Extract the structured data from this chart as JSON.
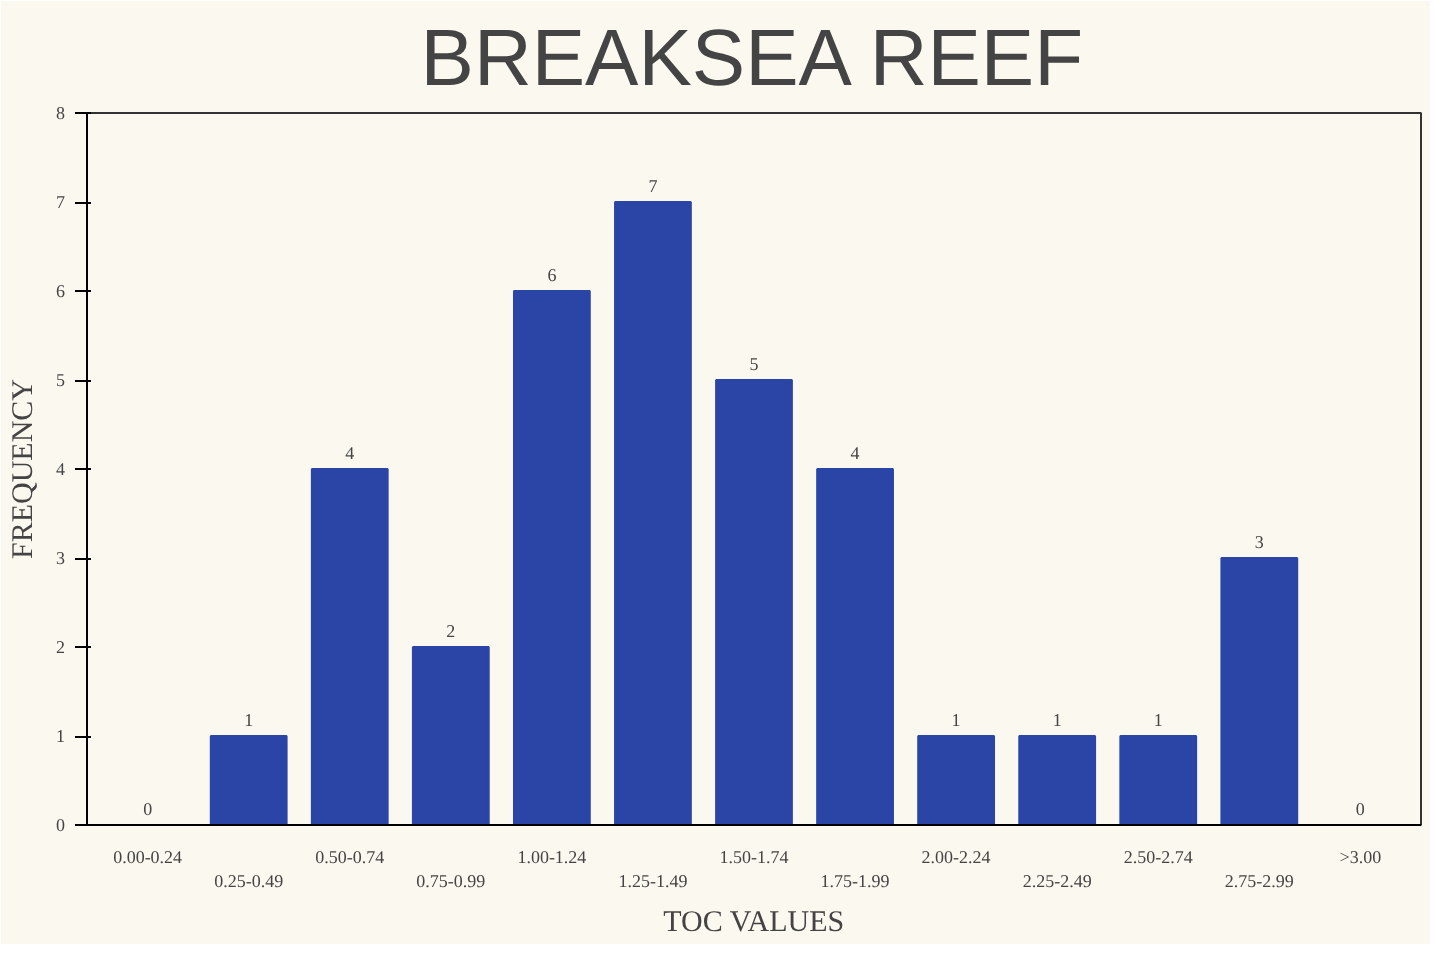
{
  "chart_data": {
    "type": "bar",
    "title": "BREAKSEA REEF",
    "xlabel": "TOC VALUES",
    "ylabel": "FREQUENCY",
    "categories": [
      "0.00-0.24",
      "0.25-0.49",
      "0.50-0.74",
      "0.75-0.99",
      "1.00-1.24",
      "1.25-1.49",
      "1.50-1.74",
      "1.75-1.99",
      "2.00-2.24",
      "2.25-2.49",
      "2.50-2.74",
      "2.75-2.99",
      ">3.00"
    ],
    "values": [
      0,
      1,
      4,
      2,
      6,
      7,
      5,
      4,
      1,
      1,
      1,
      3,
      0
    ],
    "color": "#2a45a5",
    "ylim": [
      0,
      8
    ],
    "yticks": [
      0,
      1,
      2,
      3,
      4,
      5,
      6,
      7,
      8
    ],
    "data_labels": true,
    "grid": false
  }
}
